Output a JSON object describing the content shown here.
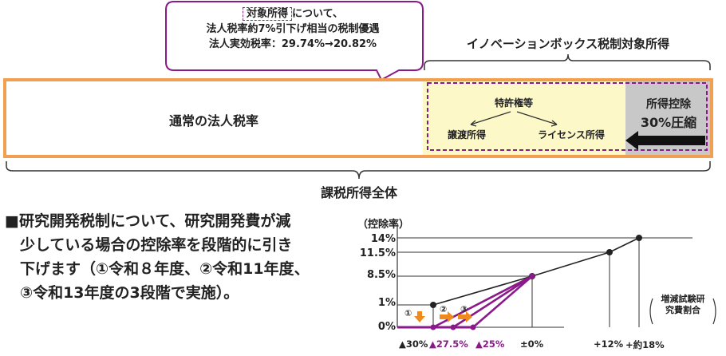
{
  "callout": {
    "tag": "対象所得",
    "line1_suffix": "について、",
    "line2_prefix": "法人税率約",
    "line2_bold": "7%引下げ",
    "line2_suffix": "相当の税制優遇",
    "line3_prefix": "法人実効税率：29.74%→",
    "line3_bold": "20.82%"
  },
  "innovation_box_title": "イノベーションボックス税制対象所得",
  "normal_rate_label": "通常の法人税率",
  "patent": {
    "top": "特許権等",
    "left": "譲渡所得",
    "right": "ライセンス所得"
  },
  "deduction": {
    "line1": "所得控除",
    "line2": "30%圧縮"
  },
  "total_income_label": "課税所得全体",
  "bullet": {
    "mark": "■",
    "line1": "研究開発税制について、研究開発費が減",
    "line2": "少している場合の控除率を段階的に引き",
    "line3": "下げます（①令和８年度、②令和11年度、",
    "line4": "③令和13年度の3段階で実施）。"
  },
  "colors": {
    "orange": "#f0a050",
    "purple": "#8a1a8a",
    "yellow_fill": "#fdf8c8",
    "gray_fill": "#c8c8c8",
    "arrow_orange": "#f08a1a"
  },
  "chart_data": {
    "type": "line",
    "ylabel": "（控除率）",
    "xlabel": "増減試験研究費割合",
    "y_ticks": [
      "14%",
      "11.5%",
      "8.5%",
      "1%",
      "0%"
    ],
    "x_ticks": [
      "▲30%",
      "▲27.5%",
      "▲25%",
      "±0%",
      "+12%",
      "+約18%"
    ],
    "step_markers": [
      "①",
      "②",
      "③"
    ],
    "series": [
      {
        "points": [
          [
            -30,
            1
          ],
          [
            0,
            8.5
          ],
          [
            12,
            11.5
          ],
          [
            18,
            14
          ]
        ]
      },
      {
        "points": [
          [
            -30,
            0
          ],
          [
            0,
            8.5
          ]
        ]
      },
      {
        "points": [
          [
            -27.5,
            0
          ],
          [
            0,
            8.5
          ]
        ]
      },
      {
        "points": [
          [
            -25,
            0
          ],
          [
            0,
            8.5
          ]
        ]
      }
    ]
  }
}
